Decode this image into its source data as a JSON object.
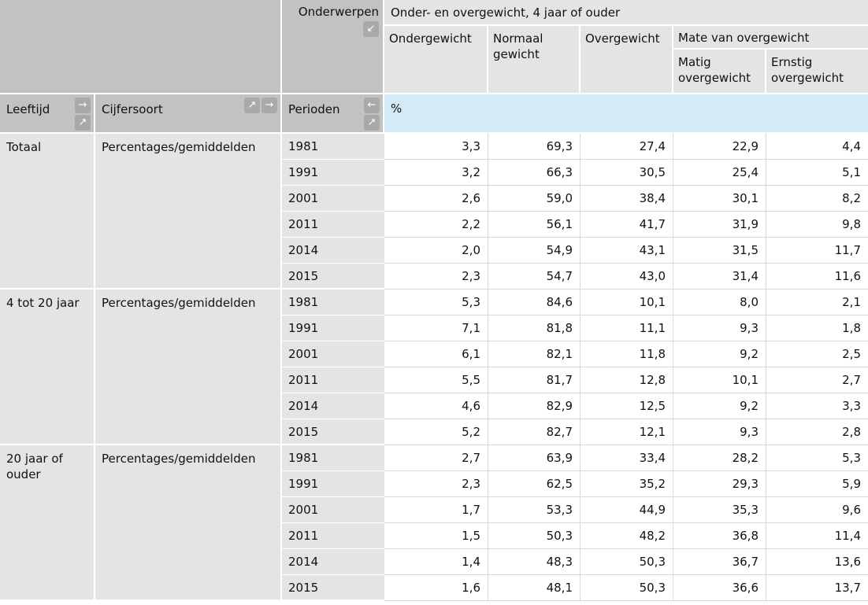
{
  "icons": {
    "right": "→",
    "up_right": "↗",
    "left": "←",
    "down_left": "↙"
  },
  "header": {
    "onderwerpen_label": "Onderwerpen",
    "topic_title": "Onder- en overgewicht, 4 jaar of ouder",
    "columns": [
      "Ondergewicht",
      "Normaal gewicht",
      "Overgewicht"
    ],
    "mate_group": {
      "label": "Mate van overgewicht",
      "children": [
        "Matig overgewicht",
        "Ernstig overgewicht"
      ]
    },
    "leeftijd_label": "Leeftijd",
    "cijfersoort_label": "Cijfersoort",
    "perioden_label": "Perioden",
    "unit": "%"
  },
  "table": {
    "groups": [
      {
        "leeftijd": "Totaal",
        "cijfersoort": "Percentages/gemiddelden",
        "rows": [
          {
            "year": "1981",
            "values": [
              "3,3",
              "69,3",
              "27,4",
              "22,9",
              "4,4"
            ]
          },
          {
            "year": "1991",
            "values": [
              "3,2",
              "66,3",
              "30,5",
              "25,4",
              "5,1"
            ]
          },
          {
            "year": "2001",
            "values": [
              "2,6",
              "59,0",
              "38,4",
              "30,1",
              "8,2"
            ]
          },
          {
            "year": "2011",
            "values": [
              "2,2",
              "56,1",
              "41,7",
              "31,9",
              "9,8"
            ]
          },
          {
            "year": "2014",
            "values": [
              "2,0",
              "54,9",
              "43,1",
              "31,5",
              "11,7"
            ]
          },
          {
            "year": "2015",
            "values": [
              "2,3",
              "54,7",
              "43,0",
              "31,4",
              "11,6"
            ]
          }
        ]
      },
      {
        "leeftijd": "4 tot 20 jaar",
        "cijfersoort": "Percentages/gemiddelden",
        "rows": [
          {
            "year": "1981",
            "values": [
              "5,3",
              "84,6",
              "10,1",
              "8,0",
              "2,1"
            ]
          },
          {
            "year": "1991",
            "values": [
              "7,1",
              "81,8",
              "11,1",
              "9,3",
              "1,8"
            ]
          },
          {
            "year": "2001",
            "values": [
              "6,1",
              "82,1",
              "11,8",
              "9,2",
              "2,5"
            ]
          },
          {
            "year": "2011",
            "values": [
              "5,5",
              "81,7",
              "12,8",
              "10,1",
              "2,7"
            ]
          },
          {
            "year": "2014",
            "values": [
              "4,6",
              "82,9",
              "12,5",
              "9,2",
              "3,3"
            ]
          },
          {
            "year": "2015",
            "values": [
              "5,2",
              "82,7",
              "12,1",
              "9,3",
              "2,8"
            ]
          }
        ]
      },
      {
        "leeftijd": "20 jaar of ouder",
        "cijfersoort": "Percentages/gemiddelden",
        "rows": [
          {
            "year": "1981",
            "values": [
              "2,7",
              "63,9",
              "33,4",
              "28,2",
              "5,3"
            ]
          },
          {
            "year": "1991",
            "values": [
              "2,3",
              "62,5",
              "35,2",
              "29,3",
              "5,9"
            ]
          },
          {
            "year": "2001",
            "values": [
              "1,7",
              "53,3",
              "44,9",
              "35,3",
              "9,6"
            ]
          },
          {
            "year": "2011",
            "values": [
              "1,5",
              "50,3",
              "48,2",
              "36,8",
              "11,4"
            ]
          },
          {
            "year": "2014",
            "values": [
              "1,4",
              "48,3",
              "50,3",
              "36,7",
              "13,6"
            ]
          },
          {
            "year": "2015",
            "values": [
              "1,6",
              "48,1",
              "50,3",
              "36,6",
              "13,7"
            ]
          }
        ]
      }
    ]
  }
}
